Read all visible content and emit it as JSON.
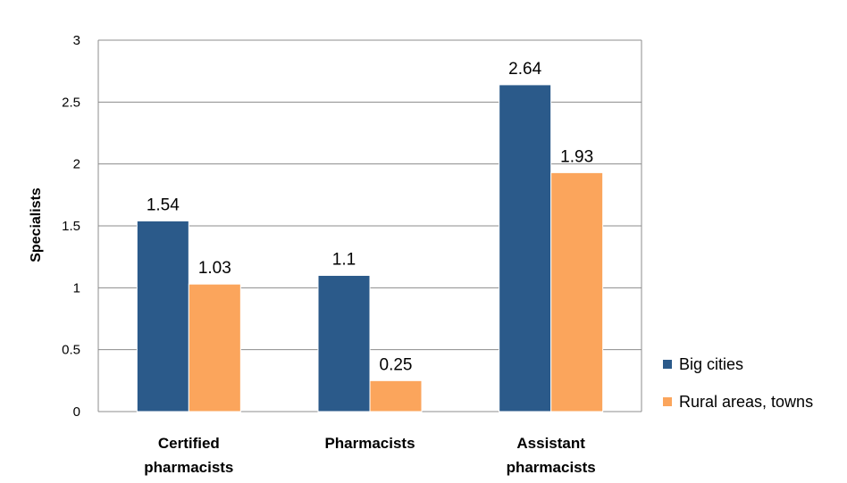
{
  "chart_data": {
    "type": "bar",
    "title": "",
    "xlabel": "",
    "ylabel": "Specialists",
    "ylim": [
      0,
      3
    ],
    "yticks": [
      0,
      0.5,
      1,
      1.5,
      2,
      2.5,
      3
    ],
    "grid": true,
    "legend_position": "right",
    "categories": [
      [
        "Certified",
        "pharmacists"
      ],
      [
        "Pharmacists"
      ],
      [
        "Assistant",
        "pharmacists"
      ]
    ],
    "series": [
      {
        "name": "Big cities",
        "color": "#2b5a8a",
        "values": [
          1.54,
          1.1,
          2.64
        ],
        "labels": [
          "1.54",
          "1.1",
          "2.64"
        ]
      },
      {
        "name": "Rural areas, towns",
        "color": "#fba55c",
        "values": [
          1.03,
          0.25,
          1.93
        ],
        "labels": [
          "1.03",
          "0.25",
          "1.93"
        ]
      }
    ]
  }
}
